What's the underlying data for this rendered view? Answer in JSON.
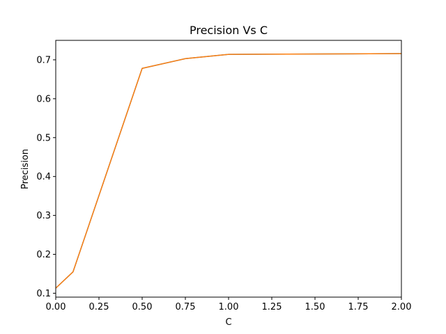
{
  "chart_data": {
    "type": "line",
    "title": "Precision Vs C",
    "xlabel": "C",
    "ylabel": "Precision",
    "xlim": [
      0,
      2
    ],
    "ylim": [
      0.09,
      0.75
    ],
    "xticks": [
      0.0,
      0.25,
      0.5,
      0.75,
      1.0,
      1.25,
      1.5,
      1.75,
      2.0
    ],
    "xtick_labels": [
      "0.00",
      "0.25",
      "0.50",
      "0.75",
      "1.00",
      "1.25",
      "1.50",
      "1.75",
      "2.00"
    ],
    "yticks": [
      0.1,
      0.2,
      0.3,
      0.4,
      0.5,
      0.6,
      0.7
    ],
    "ytick_labels": [
      "0.1",
      "0.2",
      "0.3",
      "0.4",
      "0.5",
      "0.6",
      "0.7"
    ],
    "grid": false,
    "legend": false,
    "series": [
      {
        "color": "#1f77b4",
        "x": [
          0.0,
          0.1,
          0.5,
          0.75,
          1.0,
          2.0
        ],
        "y": [
          0.113,
          0.155,
          0.678,
          0.703,
          0.714,
          0.716
        ]
      },
      {
        "color": "#ff7f0e",
        "x": [
          0.0,
          0.1,
          0.5,
          0.75,
          1.0,
          2.0
        ],
        "y": [
          0.113,
          0.155,
          0.678,
          0.703,
          0.714,
          0.716
        ]
      }
    ]
  }
}
